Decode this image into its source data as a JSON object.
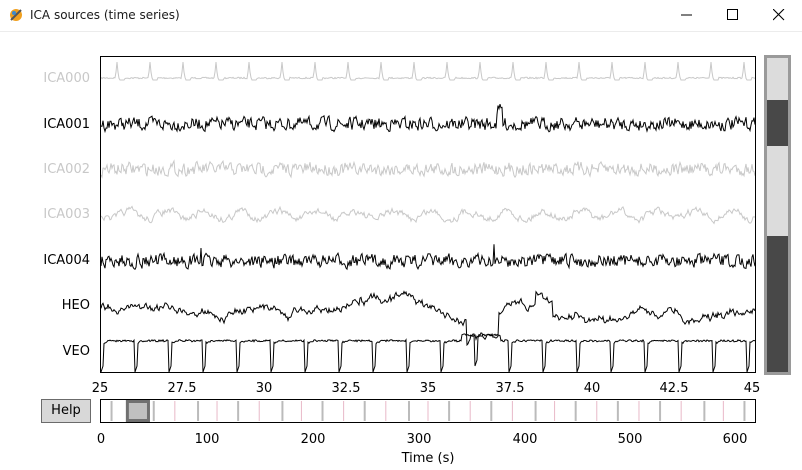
{
  "window": {
    "title": "ICA sources (time series)",
    "icons": [
      "app-icon",
      "minimize-icon",
      "maximize-icon",
      "close-icon"
    ]
  },
  "channels": [
    {
      "label": "ICA000",
      "color": "#c8c8c8",
      "style": "ecg"
    },
    {
      "label": "ICA001",
      "color": "#000000",
      "style": "noisy"
    },
    {
      "label": "ICA002",
      "color": "#c8c8c8",
      "style": "noisy"
    },
    {
      "label": "ICA003",
      "color": "#c8c8c8",
      "style": "wavy"
    },
    {
      "label": "ICA004",
      "color": "#000000",
      "style": "noisy"
    },
    {
      "label": "HEO",
      "color": "#000000",
      "style": "heo"
    },
    {
      "label": "VEO",
      "color": "#000000",
      "style": "veo"
    }
  ],
  "time_axis": {
    "ticks": [
      "25",
      "27.5",
      "30",
      "32.5",
      "35",
      "37.5",
      "40",
      "42.5",
      "45"
    ],
    "range": [
      25,
      45
    ]
  },
  "overview": {
    "ticks": [
      "0",
      "100",
      "200",
      "300",
      "400",
      "500",
      "600"
    ],
    "xlabel": "Time (s)",
    "range": [
      0,
      620
    ],
    "view_start": 25,
    "view_end": 45,
    "event_marks": [
      10,
      50,
      92,
      130,
      172,
      210,
      250,
      292,
      330,
      370,
      412,
      450,
      490,
      530,
      572,
      610
    ],
    "minor_marks": [
      30,
      70,
      110,
      150,
      190,
      230,
      270,
      310,
      350,
      390,
      430,
      470,
      510,
      550,
      590
    ]
  },
  "buttons": {
    "help": "Help"
  },
  "colors": {
    "accent": "#4a4a4a",
    "bad_channel": "#c8c8c8",
    "good_channel": "#000000"
  }
}
